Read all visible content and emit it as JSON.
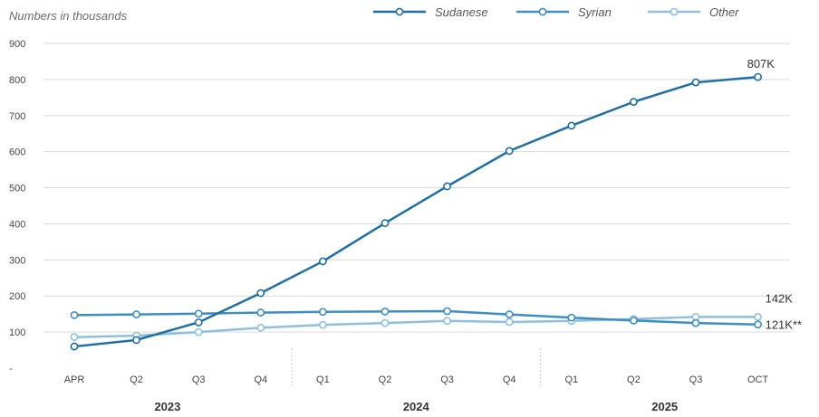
{
  "chart_data": {
    "type": "line",
    "subtitle": "Numbers in thousands",
    "x": [
      "APR",
      "Q2",
      "Q3",
      "Q4",
      "Q1",
      "Q2",
      "Q3",
      "Q4",
      "Q1",
      "Q2",
      "Q3",
      "OCT"
    ],
    "year_groups": [
      {
        "label": "2023",
        "start": 0,
        "end": 3
      },
      {
        "label": "2024",
        "start": 4,
        "end": 7
      },
      {
        "label": "2025",
        "start": 8,
        "end": 11
      }
    ],
    "ylim": [
      0,
      900
    ],
    "yticks": [
      0,
      100,
      200,
      300,
      400,
      500,
      600,
      700,
      800,
      900
    ],
    "ytick_labels": [
      "-",
      "100",
      "200",
      "300",
      "400",
      "500",
      "600",
      "700",
      "800",
      "900"
    ],
    "grid": true,
    "legend_position": "top",
    "series": [
      {
        "name": "Sudanese",
        "color": "#1f6fa6",
        "values": [
          60,
          78,
          127,
          208,
          296,
          402,
          504,
          602,
          672,
          738,
          792,
          807
        ],
        "end_label": "807K"
      },
      {
        "name": "Syrian",
        "color": "#3d8ec2",
        "values": [
          147,
          149,
          151,
          154,
          156,
          157,
          158,
          149,
          140,
          132,
          125,
          121
        ],
        "end_label": "121K**"
      },
      {
        "name": "Other",
        "color": "#8cbfe0",
        "values": [
          86,
          90,
          100,
          112,
          120,
          125,
          131,
          128,
          131,
          136,
          142,
          142
        ],
        "end_label": "142K"
      }
    ]
  }
}
